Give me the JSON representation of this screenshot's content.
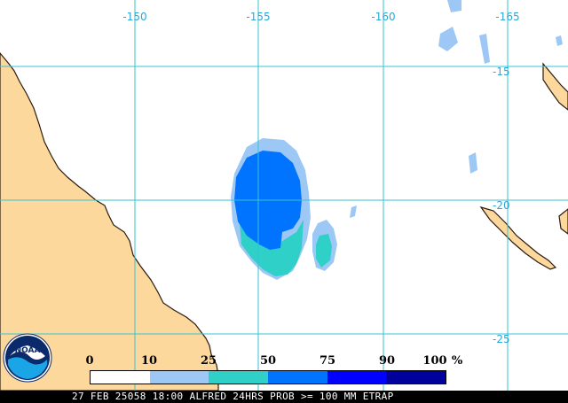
{
  "map": {
    "longitude_labels": [
      "-150",
      "-155",
      "-160",
      "-165"
    ],
    "latitude_labels": [
      "-15",
      "-20",
      "-25"
    ]
  },
  "legend": {
    "ticks": [
      "0",
      "10",
      "25",
      "50",
      "75",
      "90",
      "100",
      "%"
    ],
    "colors": [
      "#ffffff",
      "#9dc8f5",
      "#2fd0c8",
      "#0073ff",
      "#0000ff",
      "#00009c"
    ]
  },
  "caption": "27 FEB 25058 18:00 ALFRED 24HRS PROB >= 100 MM ETRAP",
  "logo": {
    "text": "NOAA"
  },
  "colors": {
    "grid": "#36c4d6",
    "land": "#fcd89c",
    "coast": "#2b1a10",
    "axis_label": "#2aa7d8"
  }
}
